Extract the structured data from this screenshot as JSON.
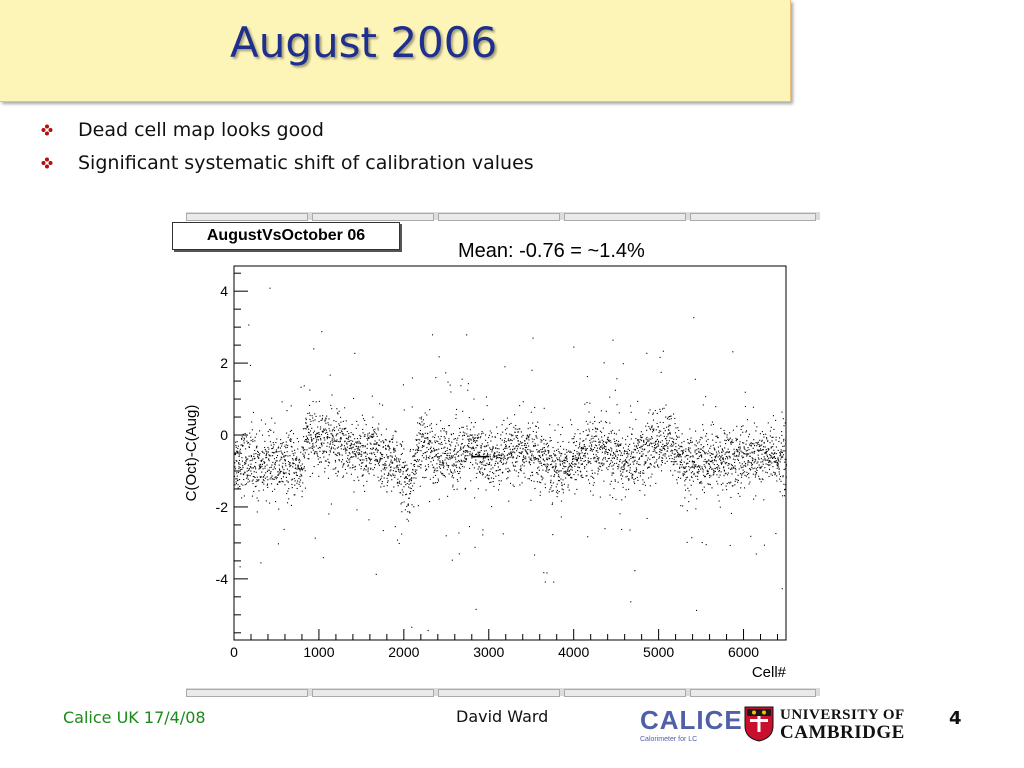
{
  "slide": {
    "title": "August 2006",
    "bullets": [
      {
        "text": "Dead cell map looks good"
      },
      {
        "text": "Significant systematic shift of calibration values"
      }
    ],
    "footer_left": "Calice UK 17/4/08",
    "footer_center": "David Ward",
    "page_number": "4",
    "logo_calice": {
      "text": "CALICE",
      "subtitle": "Calorimeter for LC"
    },
    "logo_cambridge": {
      "line1": "UNIVERSITY OF",
      "line2": "CAMBRIDGE"
    },
    "colors": {
      "title": "#1f2f8e",
      "title_bg": "#fdf4b8",
      "footer_left": "#1a8a1a",
      "bullet": "#b01010"
    }
  },
  "chart_data": {
    "type": "scatter",
    "title": "AugustVsOctober 06",
    "annotation": "Mean: -0.76 = ~1.4%",
    "xlabel": "Cell#",
    "ylabel": "C(Oct)-C(Aug)",
    "xlim": [
      0,
      6500
    ],
    "ylim": [
      -5.7,
      4.7
    ],
    "xticks": [
      0,
      1000,
      2000,
      3000,
      4000,
      5000,
      6000
    ],
    "yticks": [
      -4,
      -2,
      0,
      2,
      4
    ],
    "baseline_profile": [
      {
        "x": 0,
        "y": -0.7
      },
      {
        "x": 800,
        "y": -0.9
      },
      {
        "x": 850,
        "y": 0.0
      },
      {
        "x": 1600,
        "y": -0.5
      },
      {
        "x": 1950,
        "y": -0.9
      },
      {
        "x": 2050,
        "y": -1.5
      },
      {
        "x": 2200,
        "y": -0.2
      },
      {
        "x": 2450,
        "y": -0.6
      },
      {
        "x": 2800,
        "y": -0.4
      },
      {
        "x": 3000,
        "y": -0.7
      },
      {
        "x": 3500,
        "y": -0.4
      },
      {
        "x": 3800,
        "y": -0.9
      },
      {
        "x": 4300,
        "y": -0.3
      },
      {
        "x": 4600,
        "y": -0.8
      },
      {
        "x": 5100,
        "y": -0.1
      },
      {
        "x": 5300,
        "y": -0.8
      },
      {
        "x": 6000,
        "y": -0.6
      },
      {
        "x": 6500,
        "y": -0.6
      }
    ],
    "marker": {
      "x": 2900,
      "y": -0.6
    },
    "point_color": "#000000",
    "grid": false
  }
}
